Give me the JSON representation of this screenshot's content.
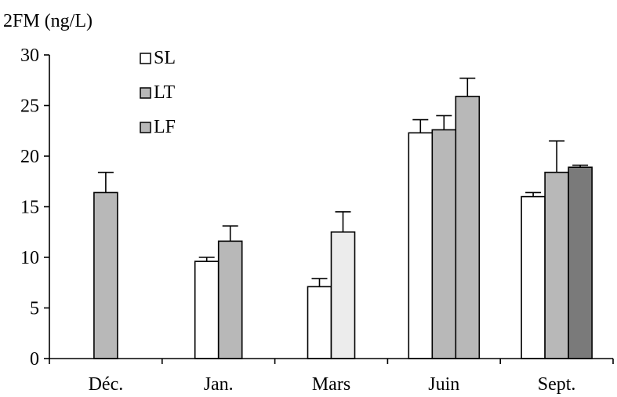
{
  "chart_data": {
    "type": "bar",
    "title": "",
    "xlabel": "",
    "ylabel": "2FM (ng/L)",
    "ylim": [
      0,
      30
    ],
    "yticks": [
      0,
      5,
      10,
      15,
      20,
      25,
      30
    ],
    "categories": [
      "Déc.",
      "Jan.",
      "Mars",
      "Juin",
      "Sept."
    ],
    "legend_position": "top-left",
    "legend": [
      {
        "label": "SL",
        "color": "#ffffff"
      },
      {
        "label": "LT",
        "color": "#b8b8b8"
      },
      {
        "label": "LF",
        "color": "#b8b8b8"
      }
    ],
    "series": [
      {
        "name": "SL",
        "color": "#ffffff",
        "values": [
          null,
          9.6,
          7.1,
          22.3,
          16.0
        ],
        "errors": [
          null,
          0.4,
          0.8,
          1.3,
          0.4
        ]
      },
      {
        "name": "LT",
        "color": "#b8b8b8",
        "values": [
          16.4,
          11.6,
          12.5,
          22.6,
          18.4
        ],
        "errors": [
          2.0,
          1.5,
          2.0,
          1.4,
          3.1
        ]
      },
      {
        "name": "LF",
        "color": "#b8b8b8",
        "values": [
          null,
          null,
          null,
          25.9,
          18.9
        ],
        "errors": [
          null,
          null,
          null,
          1.8,
          0.2
        ]
      }
    ],
    "bar_colors_override": {
      "Mars|LT": "#ececec",
      "Sept.|LF": "#7a7a7a"
    }
  }
}
